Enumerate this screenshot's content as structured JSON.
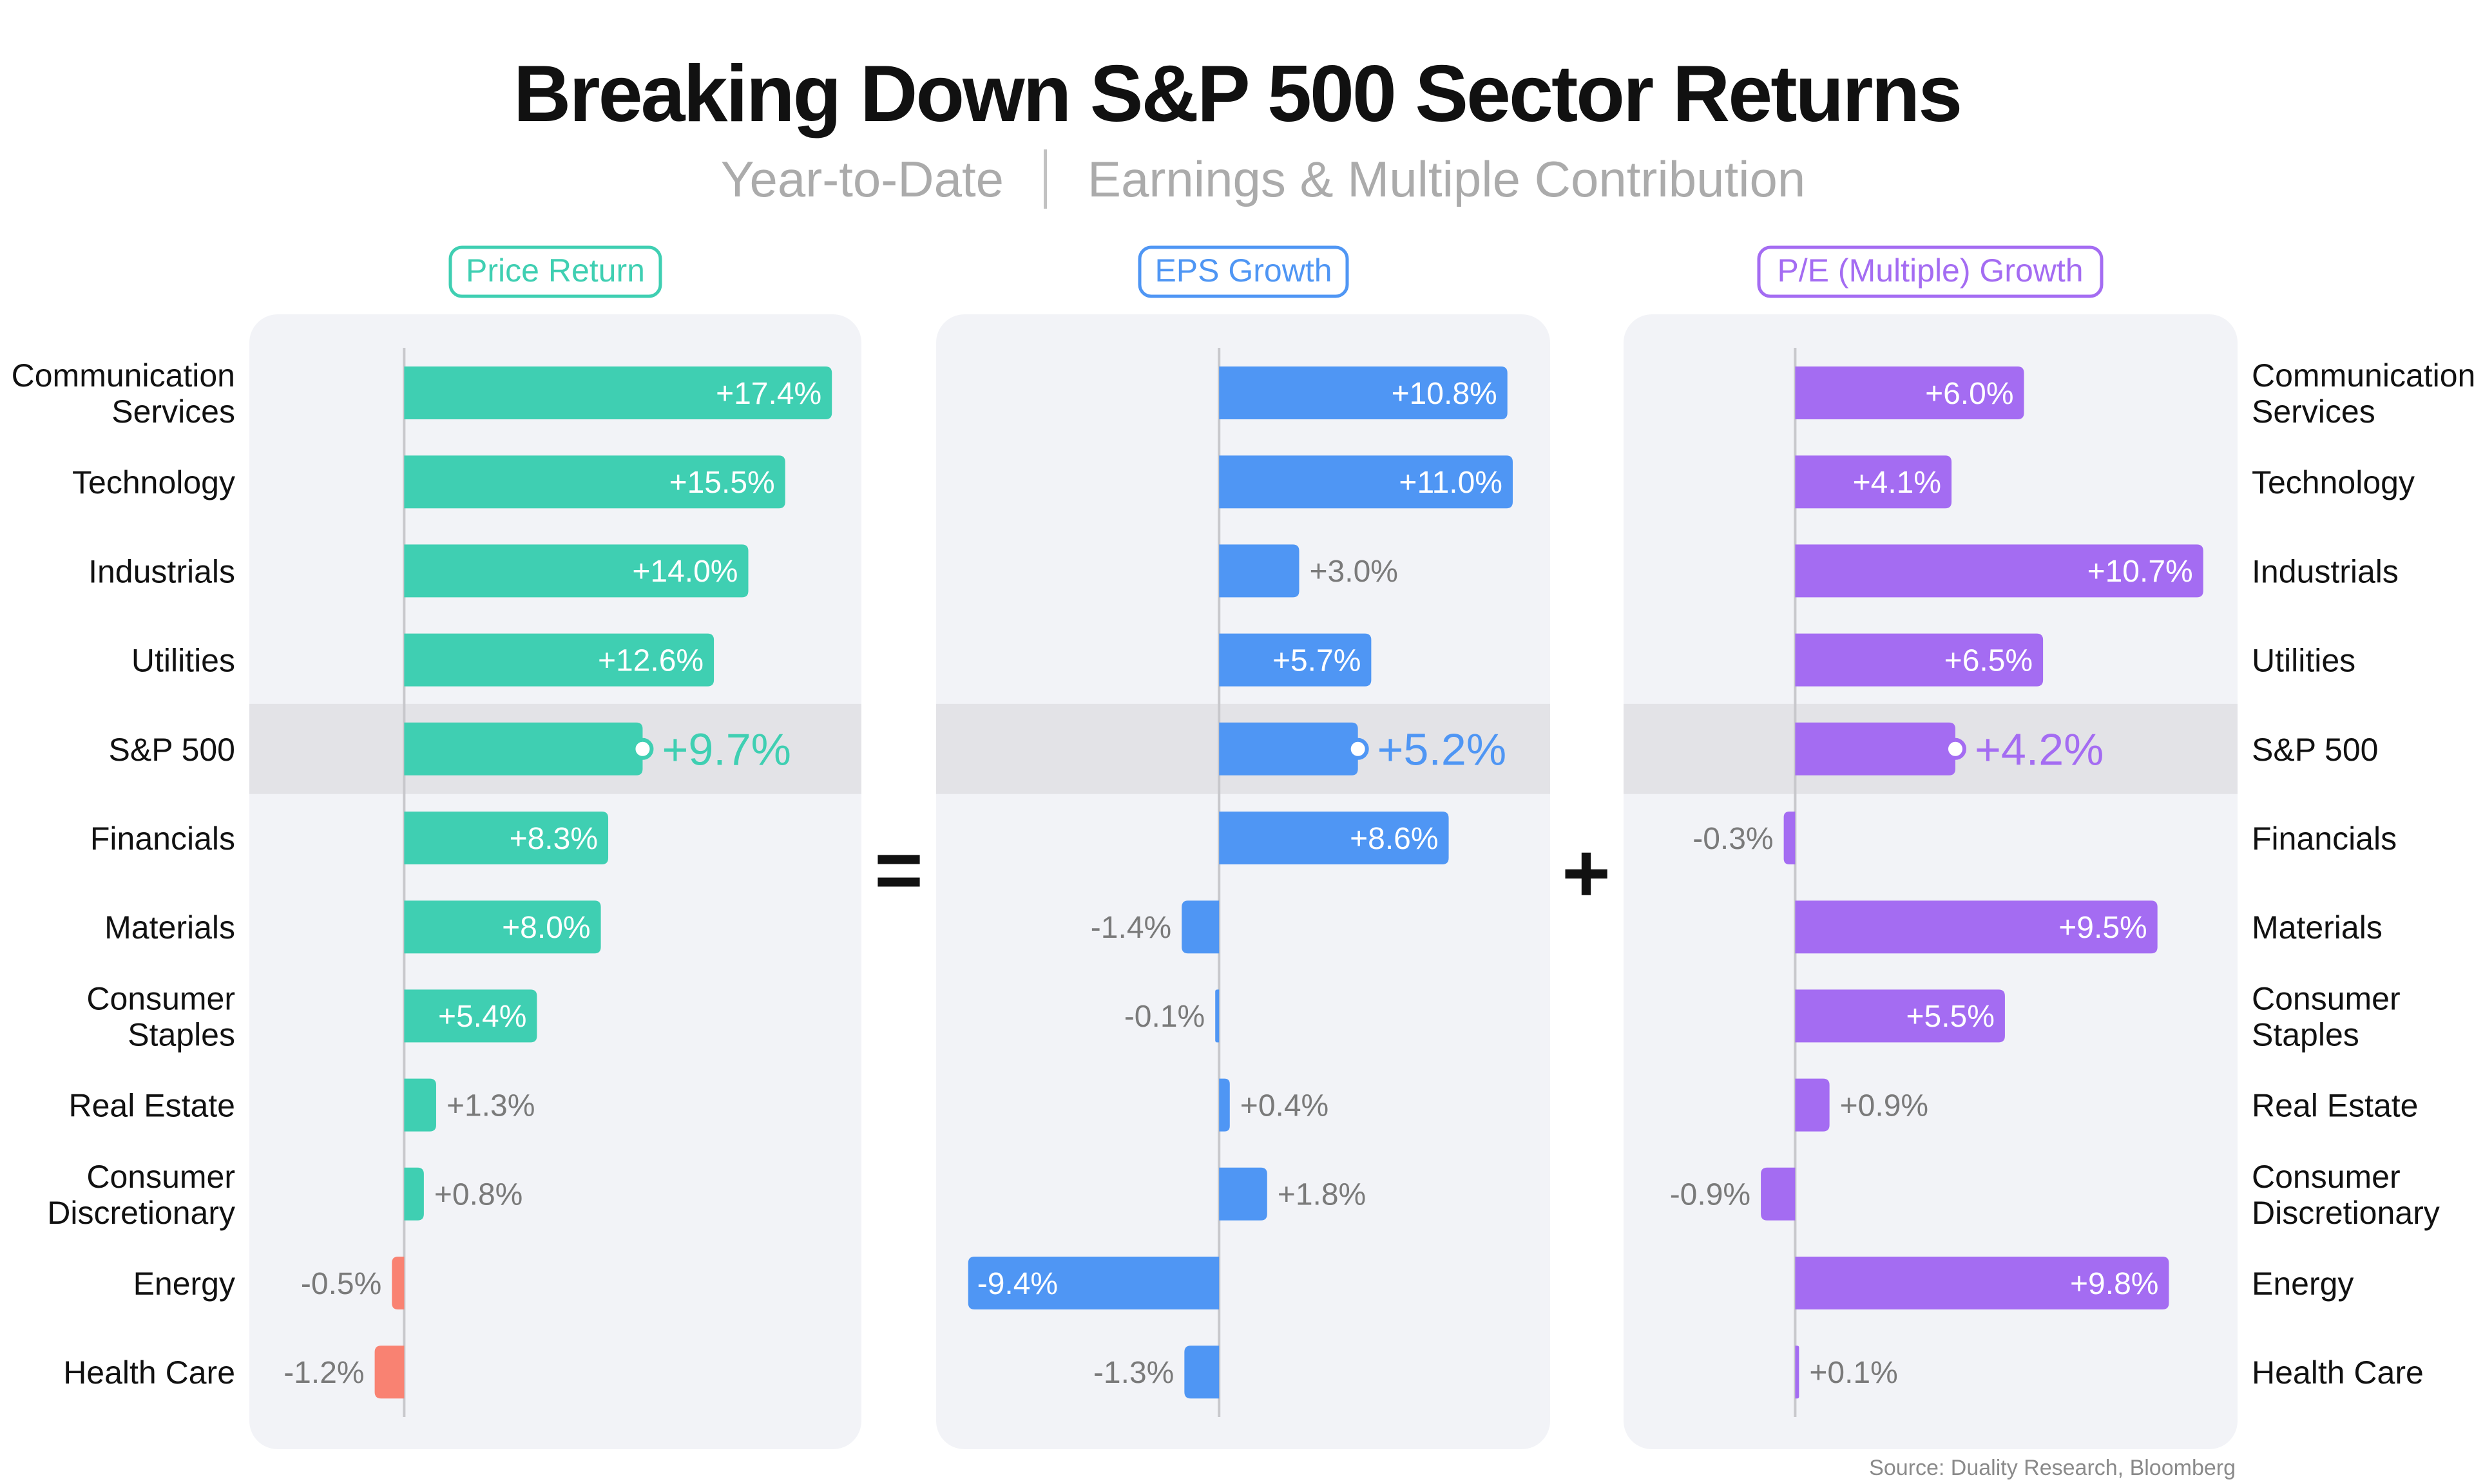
{
  "title": "Breaking Down S&P 500 Sector Returns",
  "subtitle_left": "Year-to-Date",
  "subtitle_right": "Earnings & Multiple Contribution",
  "source": "Source: Duality Research, Bloomberg",
  "operators": {
    "equals": "=",
    "plus": "+"
  },
  "colors": {
    "price": "#3fcfb2",
    "eps": "#4f96f4",
    "pe": "#a46cf2",
    "negative_price": "#f98272",
    "panel_bg": "#f2f3f7",
    "highlight_row": "#e3e3e7",
    "axis": "#c8c8cc",
    "label_outside": "#7a7a7a"
  },
  "chart_data": {
    "type": "bar",
    "orientation": "horizontal",
    "categories": [
      "Communication Services",
      "Technology",
      "Industrials",
      "Utilities",
      "S&P 500",
      "Financials",
      "Materials",
      "Consumer Staples",
      "Real Estate",
      "Consumer Discretionary",
      "Energy",
      "Health Care"
    ],
    "highlight_category": "S&P 500",
    "series": [
      {
        "name": "Price Return",
        "values": [
          17.4,
          15.5,
          14.0,
          12.6,
          9.7,
          8.3,
          8.0,
          5.4,
          1.3,
          0.8,
          -0.5,
          -1.2
        ],
        "labels": [
          "+17.4%",
          "+15.5%",
          "+14.0%",
          "+12.6%",
          "+9.7%",
          "+8.3%",
          "+8.0%",
          "+5.4%",
          "+1.3%",
          "+0.8%",
          "-0.5%",
          "-1.2%"
        ],
        "xlim": [
          -6.3,
          18.6
        ]
      },
      {
        "name": "EPS Growth",
        "values": [
          10.8,
          11.0,
          3.0,
          5.7,
          5.2,
          8.6,
          -1.4,
          -0.1,
          0.4,
          1.8,
          -9.4,
          -1.3
        ],
        "labels": [
          "+10.8%",
          "+11.0%",
          "+3.0%",
          "+5.7%",
          "+5.2%",
          "+8.6%",
          "-1.4%",
          "-0.1%",
          "+0.4%",
          "+1.8%",
          "-9.4%",
          "-1.3%"
        ],
        "xlim": [
          -10.6,
          12.4
        ]
      },
      {
        "name": "P/E (Multiple) Growth",
        "values": [
          6.0,
          4.1,
          10.7,
          6.5,
          4.2,
          -0.3,
          9.5,
          5.5,
          0.9,
          -0.9,
          9.8,
          0.1
        ],
        "labels": [
          "+6.0%",
          "+4.1%",
          "+10.7%",
          "+6.5%",
          "+4.2%",
          "-0.3%",
          "+9.5%",
          "+5.5%",
          "+0.9%",
          "-0.9%",
          "+9.8%",
          "+0.1%"
        ],
        "xlim": [
          -4.5,
          11.6
        ]
      }
    ]
  }
}
